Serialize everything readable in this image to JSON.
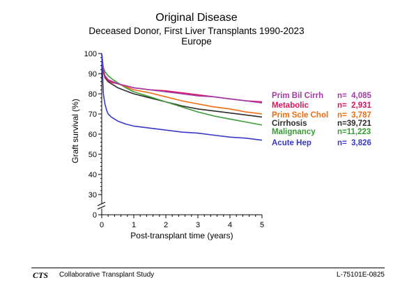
{
  "title": "Original Disease",
  "subtitle": "Deceased Donor, First Liver Transplants 1990-2023",
  "region": "Europe",
  "footer": {
    "logo": "CTS",
    "organization": "Collaborative Transplant Study",
    "code": "L-75101E-0825"
  },
  "chart_data": {
    "type": "line",
    "xlabel": "Post-transplant time (years)",
    "ylabel": "Graft survival (%)",
    "xlim": [
      0,
      5
    ],
    "ylim": [
      0,
      100
    ],
    "axis_break": "between 0 and 30",
    "x_ticks": [
      "0",
      "1",
      "2",
      "3",
      "4",
      "5"
    ],
    "y_ticks": [
      "0",
      "30",
      "40",
      "50",
      "60",
      "70",
      "80",
      "90",
      "100"
    ],
    "grid": false,
    "legend_position": "right",
    "series": [
      {
        "name": "Prim Bil Cirrh",
        "n": "n=  4,085",
        "color": "#a23aa6",
        "x": [
          0,
          0.05,
          0.1,
          0.2,
          0.35,
          0.5,
          0.75,
          1,
          1.5,
          2,
          2.5,
          3,
          3.5,
          4,
          4.5,
          5
        ],
        "y": [
          100,
          92,
          89,
          87,
          86,
          85,
          84,
          83,
          82,
          81,
          80,
          79,
          78.5,
          77.5,
          76.5,
          75.5
        ]
      },
      {
        "name": "Metabolic",
        "n": "n=  2,931",
        "color": "#e0115f",
        "x": [
          0,
          0.05,
          0.1,
          0.2,
          0.35,
          0.5,
          0.75,
          1,
          1.5,
          2,
          2.5,
          3,
          3.5,
          4,
          4.5,
          5
        ],
        "y": [
          100,
          91,
          88.5,
          86.5,
          85.5,
          85,
          84,
          83,
          82,
          81.5,
          80.5,
          79.5,
          78.5,
          77.5,
          76.5,
          76
        ]
      },
      {
        "name": "Prim Scle Chol",
        "n": "n=  3,787",
        "color": "#f26a0f",
        "x": [
          0,
          0.05,
          0.1,
          0.2,
          0.35,
          0.5,
          0.75,
          1,
          1.5,
          2,
          2.5,
          3,
          3.5,
          4,
          4.5,
          5
        ],
        "y": [
          100,
          92,
          89,
          87,
          86,
          85,
          83.5,
          82,
          80.5,
          78.5,
          76.5,
          75,
          73.5,
          72.5,
          71,
          70
        ]
      },
      {
        "name": "Cirrhosis",
        "n": "n=39,721",
        "color": "#2b2b2b",
        "x": [
          0,
          0.05,
          0.1,
          0.2,
          0.35,
          0.5,
          0.75,
          1,
          1.5,
          2,
          2.5,
          3,
          3.5,
          4,
          4.5,
          5
        ],
        "y": [
          100,
          91,
          88,
          86,
          84.5,
          83,
          81.5,
          80,
          78,
          76,
          74,
          72.5,
          71.5,
          70.5,
          69.5,
          68.5
        ]
      },
      {
        "name": "Malignancy",
        "n": "n=11,223",
        "color": "#3a9a37",
        "x": [
          0,
          0.05,
          0.1,
          0.2,
          0.35,
          0.5,
          0.75,
          1,
          1.5,
          2,
          2.5,
          3,
          3.5,
          4,
          4.5,
          5
        ],
        "y": [
          100,
          93,
          91,
          89,
          87,
          85.5,
          83,
          81,
          78.5,
          76,
          73.5,
          71,
          69,
          67.5,
          66,
          64.5
        ]
      },
      {
        "name": "Acute Hep",
        "n": "n=  3,826",
        "color": "#3737c9",
        "x": [
          0,
          0.05,
          0.1,
          0.15,
          0.2,
          0.3,
          0.4,
          0.5,
          0.75,
          1,
          1.5,
          2,
          2.5,
          3,
          3.5,
          4,
          4.5,
          5
        ],
        "y": [
          100,
          80,
          75,
          72,
          70,
          68.5,
          67.5,
          66.5,
          65,
          64,
          63,
          62,
          61,
          60.5,
          59.5,
          58.5,
          58,
          57
        ]
      }
    ]
  }
}
